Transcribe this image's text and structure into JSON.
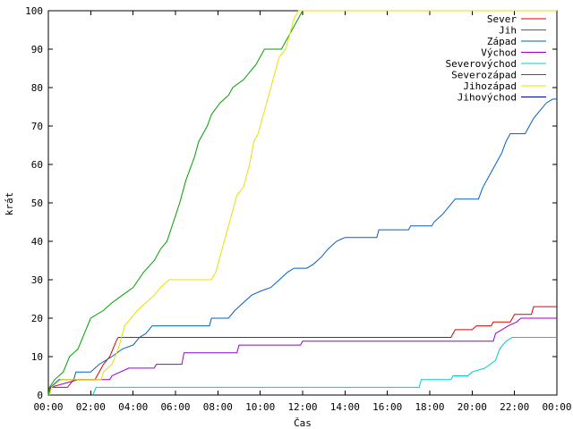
{
  "chart_data": {
    "type": "line",
    "title": "",
    "xlabel": "Čas",
    "ylabel": "krát",
    "x_unit": "hours",
    "xlim": [
      0,
      24
    ],
    "ylim": [
      0,
      100
    ],
    "x_ticks": [
      0,
      2,
      4,
      6,
      8,
      10,
      12,
      14,
      16,
      18,
      20,
      22,
      24
    ],
    "x_tick_labels": [
      "00:00",
      "02:00",
      "04:00",
      "06:00",
      "08:00",
      "10:00",
      "12:00",
      "14:00",
      "16:00",
      "18:00",
      "20:00",
      "22:00",
      "00:00"
    ],
    "y_ticks": [
      0,
      10,
      20,
      30,
      40,
      50,
      60,
      70,
      80,
      90,
      100
    ],
    "y_tick_labels": [
      "0",
      "10",
      "20",
      "30",
      "40",
      "50",
      "60",
      "70",
      "80",
      "90",
      "100"
    ],
    "grid": false,
    "legend_position": "top-right",
    "series": [
      {
        "name": "Sever",
        "color": "#e00000",
        "points": [
          [
            0.05,
            0
          ],
          [
            0.1,
            2
          ],
          [
            0.6,
            2
          ],
          [
            0.9,
            2
          ],
          [
            1.2,
            4
          ],
          [
            2.2,
            4
          ],
          [
            2.4,
            6
          ],
          [
            2.6,
            8
          ],
          [
            2.9,
            10
          ],
          [
            3.2,
            14
          ],
          [
            3.3,
            15
          ],
          [
            19.0,
            15
          ],
          [
            19.2,
            17
          ],
          [
            20.0,
            17
          ],
          [
            20.2,
            18
          ],
          [
            20.9,
            18
          ],
          [
            21.0,
            19
          ],
          [
            21.8,
            19
          ],
          [
            22.0,
            21
          ],
          [
            22.8,
            21
          ],
          [
            22.9,
            23
          ],
          [
            24,
            23
          ]
        ]
      },
      {
        "name": "Jih",
        "color": "#00a000",
        "points": [
          [
            0,
            0
          ],
          [
            0.05,
            2
          ],
          [
            0.3,
            4
          ],
          [
            0.7,
            6
          ],
          [
            1.0,
            10
          ],
          [
            1.4,
            12
          ],
          [
            1.7,
            16
          ],
          [
            2.0,
            20
          ],
          [
            2.6,
            22
          ],
          [
            3.0,
            24
          ],
          [
            3.5,
            26
          ],
          [
            4.0,
            28
          ],
          [
            4.5,
            32
          ],
          [
            5.0,
            35
          ],
          [
            5.3,
            38
          ],
          [
            5.6,
            40
          ],
          [
            5.9,
            45
          ],
          [
            6.2,
            50
          ],
          [
            6.5,
            56
          ],
          [
            6.9,
            62
          ],
          [
            7.1,
            66
          ],
          [
            7.5,
            70
          ],
          [
            7.7,
            73
          ],
          [
            8.1,
            76
          ],
          [
            8.5,
            78
          ],
          [
            8.7,
            80
          ],
          [
            9.2,
            82
          ],
          [
            9.5,
            84
          ],
          [
            9.8,
            86
          ],
          [
            10.2,
            90
          ],
          [
            11.0,
            90
          ],
          [
            11.2,
            92
          ],
          [
            11.5,
            95
          ],
          [
            11.7,
            97
          ],
          [
            11.9,
            99
          ],
          [
            12.0,
            100
          ],
          [
            24,
            100
          ]
        ]
      },
      {
        "name": "Západ",
        "color": "#0060c0",
        "points": [
          [
            0.05,
            0
          ],
          [
            0.1,
            2
          ],
          [
            0.5,
            4
          ],
          [
            1.2,
            4
          ],
          [
            1.3,
            6
          ],
          [
            2.0,
            6
          ],
          [
            2.4,
            8
          ],
          [
            3.0,
            10
          ],
          [
            3.5,
            12
          ],
          [
            4.0,
            13
          ],
          [
            4.3,
            15
          ],
          [
            4.6,
            16
          ],
          [
            4.9,
            18
          ],
          [
            7.6,
            18
          ],
          [
            7.7,
            20
          ],
          [
            8.5,
            20
          ],
          [
            8.8,
            22
          ],
          [
            9.2,
            24
          ],
          [
            9.6,
            26
          ],
          [
            10.0,
            27
          ],
          [
            10.5,
            28
          ],
          [
            10.9,
            30
          ],
          [
            11.3,
            32
          ],
          [
            11.6,
            33
          ],
          [
            12.2,
            33
          ],
          [
            12.5,
            34
          ],
          [
            12.9,
            36
          ],
          [
            13.2,
            38
          ],
          [
            13.6,
            40
          ],
          [
            14.0,
            41
          ],
          [
            15.5,
            41
          ],
          [
            15.6,
            43
          ],
          [
            17.0,
            43
          ],
          [
            17.1,
            44
          ],
          [
            18.1,
            44
          ],
          [
            18.2,
            45
          ],
          [
            18.6,
            47
          ],
          [
            18.9,
            49
          ],
          [
            19.2,
            51
          ],
          [
            20.3,
            51
          ],
          [
            20.5,
            54
          ],
          [
            20.8,
            57
          ],
          [
            21.1,
            60
          ],
          [
            21.4,
            63
          ],
          [
            21.6,
            66
          ],
          [
            21.8,
            68
          ],
          [
            22.5,
            68
          ],
          [
            22.7,
            70
          ],
          [
            22.9,
            72
          ],
          [
            23.2,
            74
          ],
          [
            23.5,
            76
          ],
          [
            23.8,
            77
          ],
          [
            24,
            77
          ]
        ]
      },
      {
        "name": "Východ",
        "color": "#9900cc",
        "points": [
          [
            0.05,
            0
          ],
          [
            0.1,
            2
          ],
          [
            1.4,
            4
          ],
          [
            2.9,
            4
          ],
          [
            3.0,
            5
          ],
          [
            3.8,
            7
          ],
          [
            5.0,
            7
          ],
          [
            5.1,
            8
          ],
          [
            6.3,
            8
          ],
          [
            6.4,
            11
          ],
          [
            8.9,
            11
          ],
          [
            9.0,
            13
          ],
          [
            11.9,
            13
          ],
          [
            12.0,
            14
          ],
          [
            21.0,
            14
          ],
          [
            21.1,
            16
          ],
          [
            21.4,
            17
          ],
          [
            21.7,
            18
          ],
          [
            22.1,
            19
          ],
          [
            22.3,
            20
          ],
          [
            24,
            20
          ]
        ]
      },
      {
        "name": "Severovýchod",
        "color": "#00cccc",
        "points": [
          [
            2.1,
            0
          ],
          [
            2.25,
            2
          ],
          [
            17.5,
            2
          ],
          [
            17.6,
            4
          ],
          [
            19.0,
            4
          ],
          [
            19.1,
            5
          ],
          [
            19.8,
            5
          ],
          [
            20.0,
            6
          ],
          [
            20.6,
            7
          ],
          [
            21.1,
            9
          ],
          [
            21.3,
            12
          ],
          [
            21.6,
            14
          ],
          [
            21.9,
            15
          ],
          [
            24,
            15
          ]
        ]
      },
      {
        "name": "Severozápad",
        "color": "#b03010",
        "points": []
      },
      {
        "name": "Jihozápad",
        "color": "#e8e000",
        "points": [
          [
            0.05,
            0
          ],
          [
            0.15,
            2
          ],
          [
            0.6,
            4
          ],
          [
            1.2,
            4
          ],
          [
            2.5,
            4
          ],
          [
            2.6,
            6
          ],
          [
            3.0,
            8
          ],
          [
            3.3,
            12
          ],
          [
            3.6,
            18
          ],
          [
            3.9,
            20
          ],
          [
            4.2,
            22
          ],
          [
            4.6,
            24
          ],
          [
            5.0,
            26
          ],
          [
            5.3,
            28
          ],
          [
            5.7,
            30
          ],
          [
            7.7,
            30
          ],
          [
            7.9,
            32
          ],
          [
            8.1,
            36
          ],
          [
            8.3,
            40
          ],
          [
            8.5,
            44
          ],
          [
            8.7,
            48
          ],
          [
            8.9,
            52
          ],
          [
            9.2,
            54
          ],
          [
            9.5,
            60
          ],
          [
            9.7,
            66
          ],
          [
            9.9,
            68
          ],
          [
            10.1,
            72
          ],
          [
            10.3,
            76
          ],
          [
            10.5,
            80
          ],
          [
            10.7,
            84
          ],
          [
            10.9,
            88
          ],
          [
            11.2,
            90
          ],
          [
            11.4,
            94
          ],
          [
            11.6,
            98
          ],
          [
            11.8,
            100
          ],
          [
            24,
            100
          ]
        ]
      },
      {
        "name": "Jihovýchod",
        "color": "#0000a0",
        "points": []
      }
    ]
  }
}
